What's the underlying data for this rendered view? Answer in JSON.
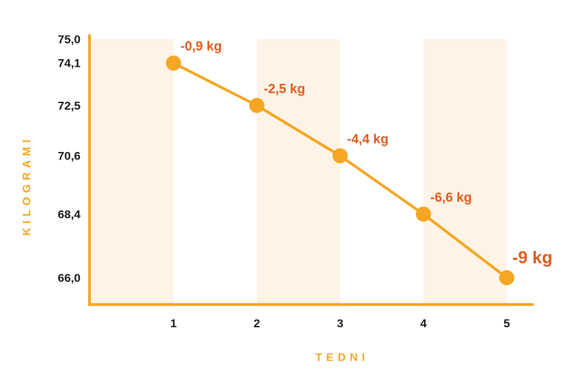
{
  "colors": {
    "line": "#F5A623",
    "marker": "#F5A623",
    "band": "#FDF3E6",
    "axis": "#F5A623",
    "axis_title": "#F5A623",
    "data_label": "#E05A1E",
    "tick": "#1a1a1a"
  },
  "chart_data": {
    "type": "line",
    "title": "",
    "xlabel": "TEDNI",
    "ylabel": "KILOGRAMI",
    "x": [
      1,
      2,
      3,
      4,
      5
    ],
    "y_tick_labels": [
      "75,0",
      "74,1",
      "72,5",
      "70,6",
      "68,4",
      "66,0"
    ],
    "y_ticks": [
      75.0,
      74.1,
      72.5,
      70.6,
      68.4,
      66.0
    ],
    "x_tick_labels": [
      "1",
      "2",
      "3",
      "4",
      "5"
    ],
    "ylim": [
      66.0,
      75.0
    ],
    "grid": false,
    "shaded_bands": true,
    "series": [
      {
        "values": [
          74.1,
          72.5,
          70.6,
          68.4,
          66.0
        ],
        "data_labels": [
          "-0,9 kg",
          "-2,5 kg",
          "-4,4 kg",
          "-6,6 kg",
          "-9 kg"
        ]
      }
    ]
  }
}
